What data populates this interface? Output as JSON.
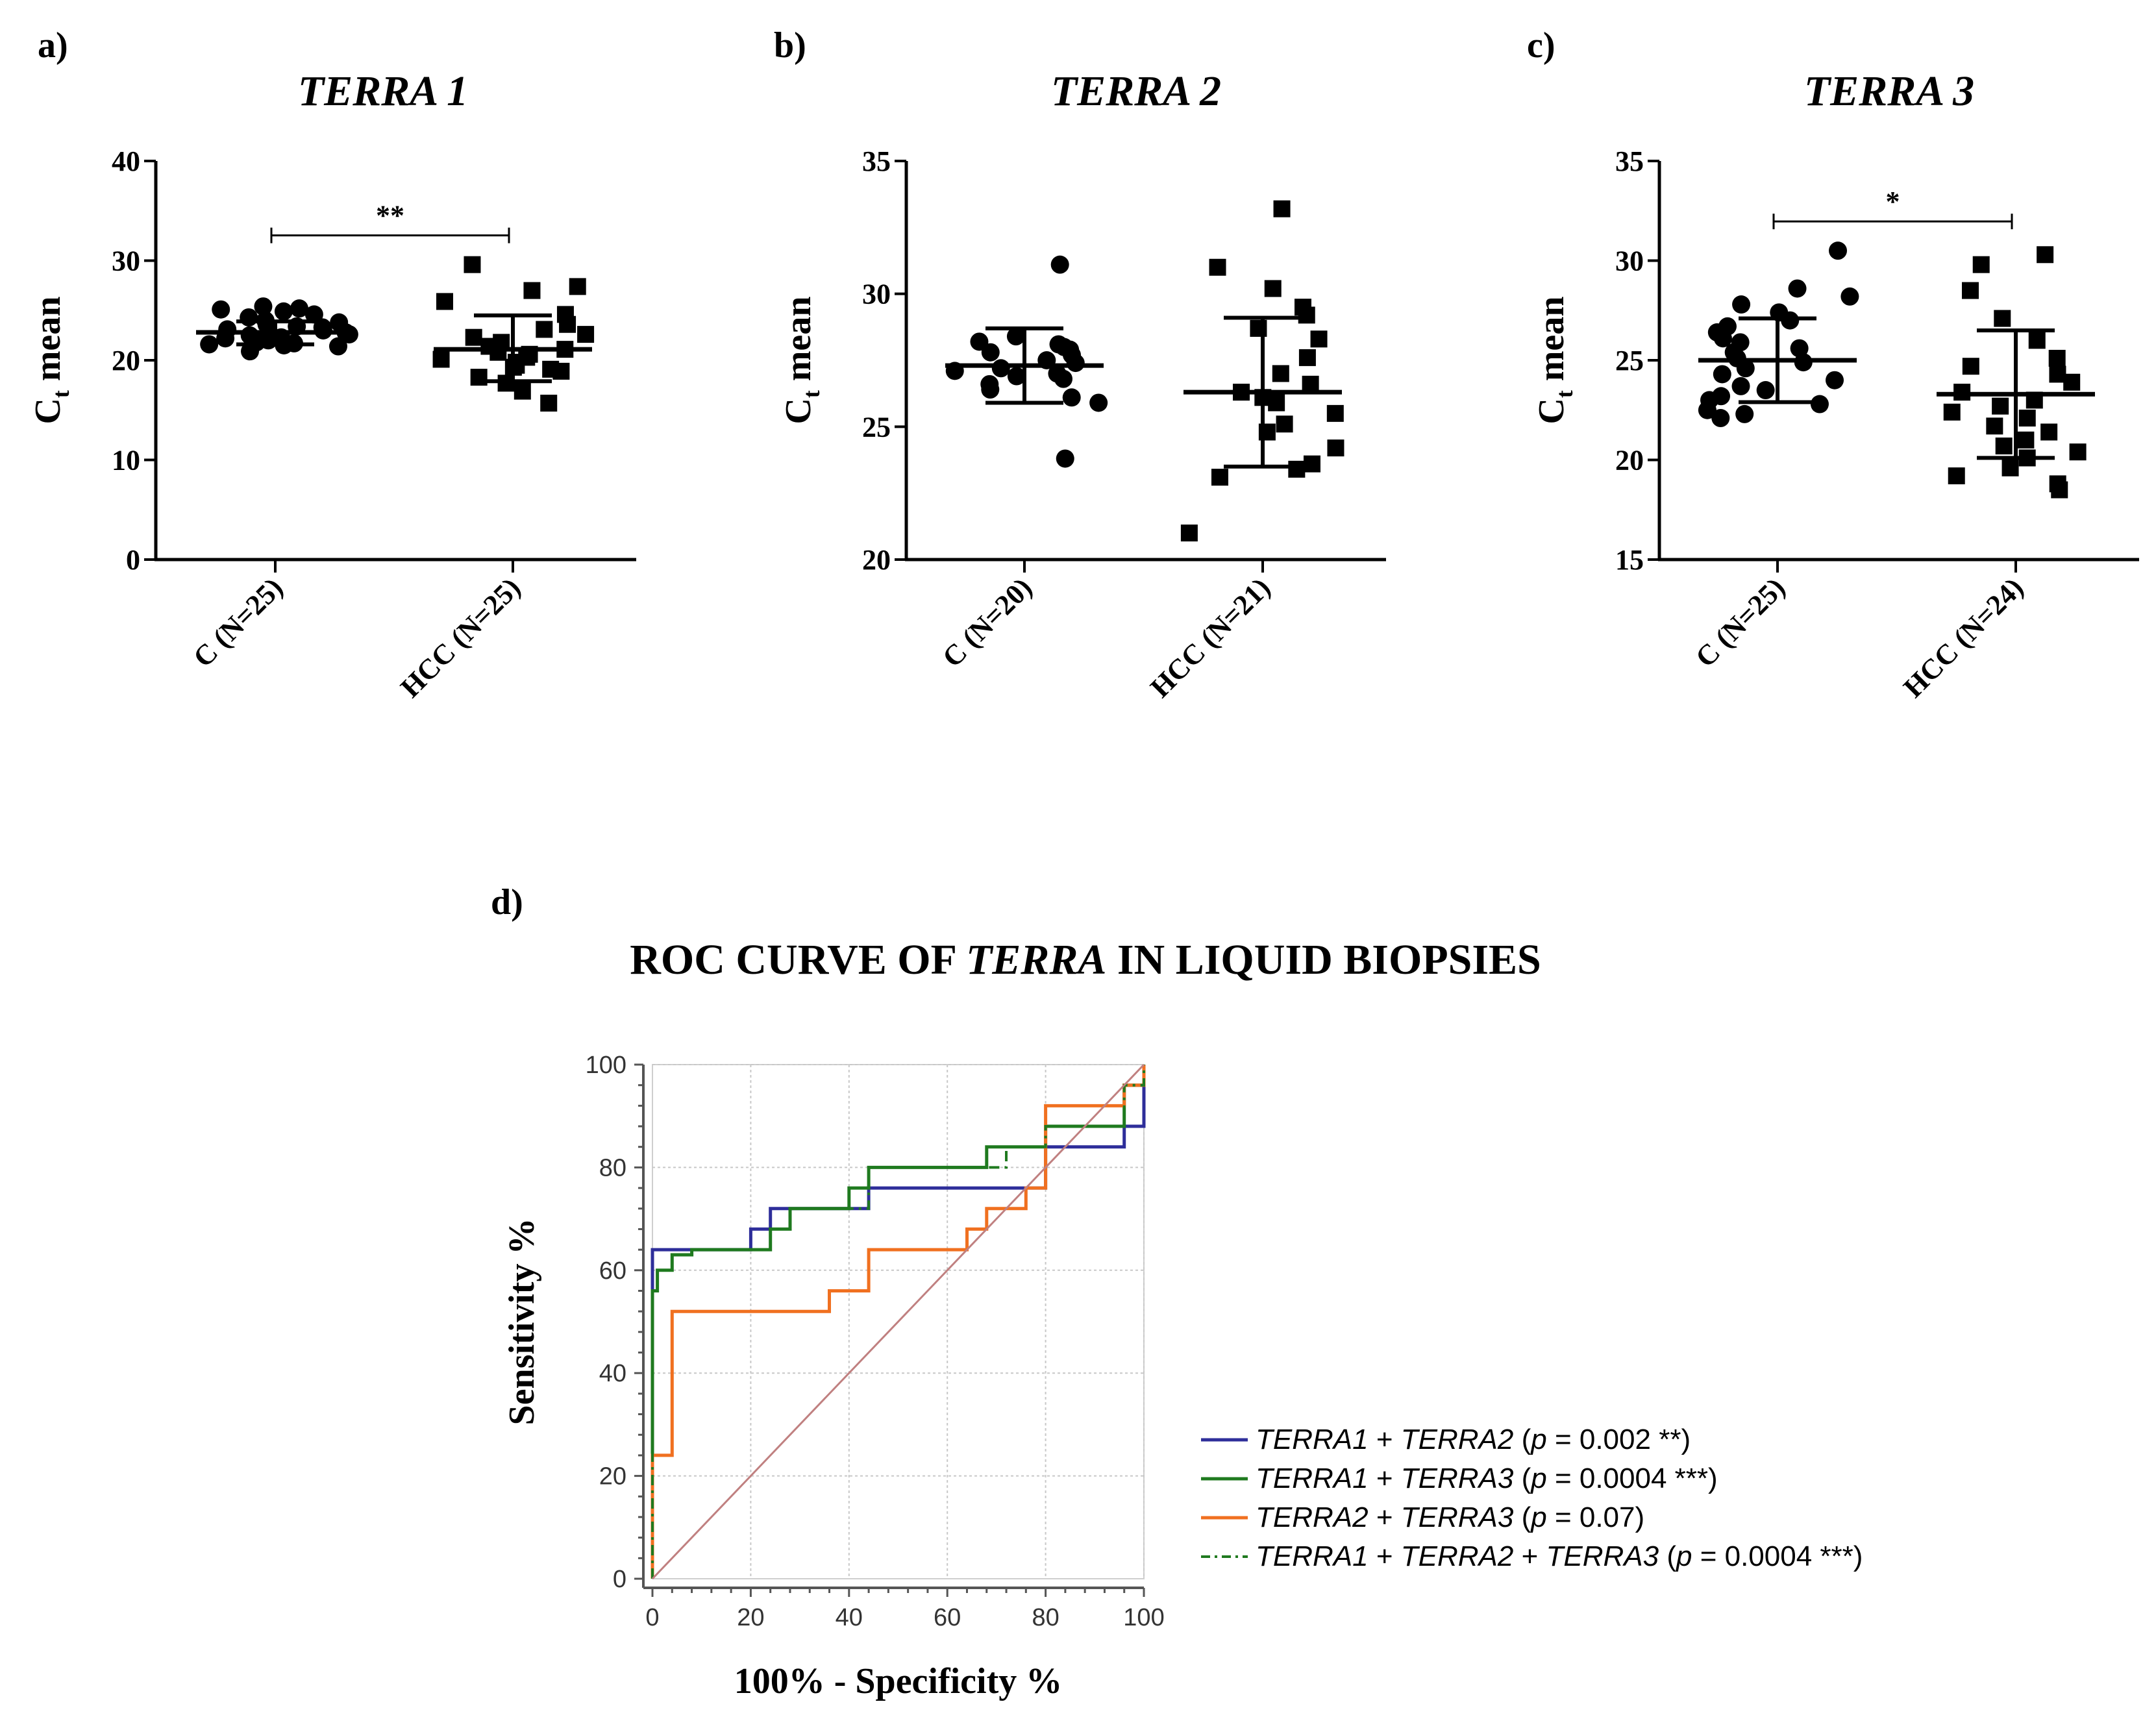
{
  "chart_data": [
    {
      "panel_label": "a)",
      "type": "scatter",
      "title": "TERRA 1",
      "ylabel_main": "C",
      "ylabel_sub": "t",
      "ylabel_rest": " mean",
      "ylim": [
        0,
        40
      ],
      "yticks": [
        0,
        10,
        20,
        30,
        40
      ],
      "categories": [
        "C (N=25)",
        "HCC (N=25)"
      ],
      "groups": [
        {
          "name": "C (N=25)",
          "marker": "circle",
          "mean": 22.8,
          "sd_upper": 23.9,
          "sd_lower": 21.6,
          "points": [
            21.4,
            21.6,
            21.5,
            21.8,
            22.0,
            21.7,
            22.2,
            22.5,
            22.3,
            22.8,
            23.0,
            23.1,
            22.6,
            23.3,
            23.6,
            23.8,
            24.0,
            23.4,
            24.3,
            24.6,
            24.9,
            25.2,
            25.4,
            25.1,
            20.9
          ]
        },
        {
          "name": "HCC (N=25)",
          "marker": "square",
          "mean": 21.1,
          "sd_upper": 24.5,
          "sd_lower": 17.9,
          "points": [
            15.7,
            16.9,
            17.7,
            18.3,
            18.9,
            19.1,
            19.3,
            19.5,
            19.8,
            20.1,
            20.3,
            20.6,
            20.8,
            21.1,
            21.4,
            21.8,
            22.3,
            22.6,
            23.1,
            23.6,
            24.6,
            25.9,
            27.0,
            27.4,
            29.6
          ]
        }
      ],
      "significance": "**"
    },
    {
      "panel_label": "b)",
      "type": "scatter",
      "title": "TERRA 2",
      "ylabel_main": "C",
      "ylabel_sub": "t",
      "ylabel_rest": " mean",
      "ylim": [
        20,
        35
      ],
      "yticks": [
        20,
        25,
        30,
        35
      ],
      "categories": [
        "C (N=20)",
        "HCC (N=21)"
      ],
      "groups": [
        {
          "name": "C (N=20)",
          "marker": "circle",
          "mean": 27.3,
          "sd_upper": 28.7,
          "sd_lower": 25.9,
          "points": [
            23.8,
            25.9,
            26.1,
            26.4,
            26.6,
            26.8,
            26.9,
            27.0,
            27.1,
            27.2,
            27.4,
            27.5,
            27.7,
            27.8,
            27.9,
            28.0,
            28.1,
            28.2,
            28.4,
            31.1
          ]
        },
        {
          "name": "HCC (N=21)",
          "marker": "square",
          "mean": 26.3,
          "sd_upper": 29.1,
          "sd_lower": 23.5,
          "points": [
            21.0,
            23.1,
            23.4,
            23.6,
            24.2,
            24.8,
            25.1,
            25.5,
            25.9,
            26.1,
            26.3,
            26.6,
            27.0,
            27.6,
            28.3,
            28.7,
            29.2,
            29.5,
            30.2,
            31.0,
            33.2
          ]
        }
      ],
      "significance": ""
    },
    {
      "panel_label": "c)",
      "type": "scatter",
      "title": "TERRA 3",
      "ylabel_main": "C",
      "ylabel_sub": "t",
      "ylabel_rest": " mean",
      "ylim": [
        15,
        35
      ],
      "yticks": [
        15,
        20,
        25,
        30,
        35
      ],
      "categories": [
        "C (N=25)",
        "HCC (N=24)"
      ],
      "groups": [
        {
          "name": "C (N=25)",
          "marker": "circle",
          "mean": 25.0,
          "sd_upper": 27.1,
          "sd_lower": 22.9,
          "points": [
            22.1,
            22.3,
            22.5,
            22.8,
            23.0,
            23.2,
            23.5,
            23.7,
            24.0,
            24.3,
            24.6,
            24.9,
            25.1,
            25.4,
            25.6,
            25.9,
            26.1,
            26.4,
            26.7,
            27.0,
            27.4,
            27.8,
            28.2,
            28.6,
            30.5
          ]
        },
        {
          "name": "HCC (N=24)",
          "marker": "square",
          "mean": 23.3,
          "sd_upper": 26.5,
          "sd_lower": 20.1,
          "points": [
            18.5,
            18.8,
            19.2,
            19.6,
            20.1,
            20.4,
            20.7,
            21.0,
            21.4,
            21.7,
            22.1,
            22.4,
            22.7,
            23.0,
            23.4,
            23.9,
            24.3,
            24.7,
            25.1,
            26.0,
            27.1,
            28.5,
            29.8,
            30.3
          ]
        }
      ],
      "significance": "*"
    },
    {
      "panel_label": "d)",
      "type": "line",
      "title_pre": "ROC CURVE OF ",
      "title_italic": "TERRA",
      "title_post": " IN LIQUID BIOPSIES",
      "xlabel": "100% - Specificity %",
      "ylabel": "Sensitivity %",
      "xlim": [
        0,
        100
      ],
      "ylim": [
        0,
        100
      ],
      "xticks": [
        0,
        20,
        40,
        60,
        80,
        100
      ],
      "yticks": [
        0,
        20,
        40,
        60,
        80,
        100
      ],
      "grid": true,
      "legend_position": "bottom-right outside",
      "series": [
        {
          "name": "TERRA1 + TERRA2",
          "color": "#2e2e9a",
          "dash": "solid",
          "legend_parts": [
            [
              "TERRA1",
              true
            ],
            [
              " + ",
              false
            ],
            [
              "TERRA2",
              true
            ],
            [
              " (",
              false
            ],
            [
              "p",
              true
            ],
            [
              " = 0.002 **)",
              false
            ]
          ],
          "points": [
            [
              0,
              0
            ],
            [
              0,
              64
            ],
            [
              20,
              64
            ],
            [
              20,
              68
            ],
            [
              24,
              68
            ],
            [
              24,
              72
            ],
            [
              44,
              72
            ],
            [
              44,
              76
            ],
            [
              80,
              76
            ],
            [
              80,
              84
            ],
            [
              96,
              84
            ],
            [
              96,
              88
            ],
            [
              100,
              88
            ],
            [
              100,
              100
            ]
          ]
        },
        {
          "name": "TERRA1 + TERRA3",
          "color": "#1f7a1f",
          "dash": "solid",
          "legend_parts": [
            [
              "TERRA1",
              true
            ],
            [
              " + ",
              false
            ],
            [
              "TERRA3",
              true
            ],
            [
              " (",
              false
            ],
            [
              "p",
              true
            ],
            [
              " = 0.0004 ***)",
              false
            ]
          ],
          "points": [
            [
              0,
              0
            ],
            [
              0,
              56
            ],
            [
              1,
              56
            ],
            [
              1,
              60
            ],
            [
              4,
              60
            ],
            [
              4,
              63
            ],
            [
              8,
              63
            ],
            [
              8,
              64
            ],
            [
              24,
              64
            ],
            [
              24,
              68
            ],
            [
              28,
              68
            ],
            [
              28,
              72
            ],
            [
              40,
              72
            ],
            [
              40,
              76
            ],
            [
              44,
              76
            ],
            [
              44,
              80
            ],
            [
              68,
              80
            ],
            [
              68,
              84
            ],
            [
              80,
              84
            ],
            [
              80,
              88
            ],
            [
              96,
              88
            ],
            [
              96,
              96
            ],
            [
              100,
              96
            ],
            [
              100,
              100
            ]
          ]
        },
        {
          "name": "TERRA2 + TERRA3",
          "color": "#f07020",
          "dash": "solid",
          "legend_parts": [
            [
              "TERRA2",
              true
            ],
            [
              " + ",
              false
            ],
            [
              "TERRA3",
              true
            ],
            [
              " (",
              false
            ],
            [
              "p",
              true
            ],
            [
              " = 0.07)",
              false
            ]
          ],
          "points": [
            [
              0,
              0
            ],
            [
              0,
              24
            ],
            [
              4,
              24
            ],
            [
              4,
              52
            ],
            [
              36,
              52
            ],
            [
              36,
              56
            ],
            [
              44,
              56
            ],
            [
              44,
              64
            ],
            [
              64,
              64
            ],
            [
              64,
              68
            ],
            [
              68,
              68
            ],
            [
              68,
              72
            ],
            [
              76,
              72
            ],
            [
              76,
              76
            ],
            [
              80,
              76
            ],
            [
              80,
              92
            ],
            [
              96,
              92
            ],
            [
              96,
              96
            ],
            [
              100,
              96
            ],
            [
              100,
              100
            ]
          ]
        },
        {
          "name": "TERRA1 + TERRA2 + TERRA3",
          "color": "#1f7a1f",
          "dash": "dashdot",
          "legend_parts": [
            [
              "TERRA1",
              true
            ],
            [
              " + ",
              false
            ],
            [
              "TERRA2",
              true
            ],
            [
              " + ",
              false
            ],
            [
              "TERRA3",
              true
            ],
            [
              " (",
              false
            ],
            [
              "p",
              true
            ],
            [
              " = 0.0004 ***)",
              false
            ]
          ],
          "points": [
            [
              0,
              0
            ],
            [
              0,
              56
            ],
            [
              1,
              56
            ],
            [
              1,
              60
            ],
            [
              4,
              60
            ],
            [
              4,
              63
            ],
            [
              8,
              63
            ],
            [
              8,
              64
            ],
            [
              24,
              64
            ],
            [
              24,
              68
            ],
            [
              28,
              68
            ],
            [
              28,
              72
            ],
            [
              44,
              72
            ],
            [
              44,
              80
            ],
            [
              72,
              80
            ],
            [
              72,
              84
            ],
            [
              80,
              84
            ],
            [
              80,
              88
            ],
            [
              96,
              88
            ],
            [
              96,
              96
            ],
            [
              100,
              96
            ],
            [
              100,
              100
            ]
          ]
        },
        {
          "name": "reference",
          "color": "#c08080",
          "dash": "diagonal",
          "points": [
            [
              0,
              0
            ],
            [
              100,
              100
            ]
          ]
        }
      ]
    }
  ]
}
